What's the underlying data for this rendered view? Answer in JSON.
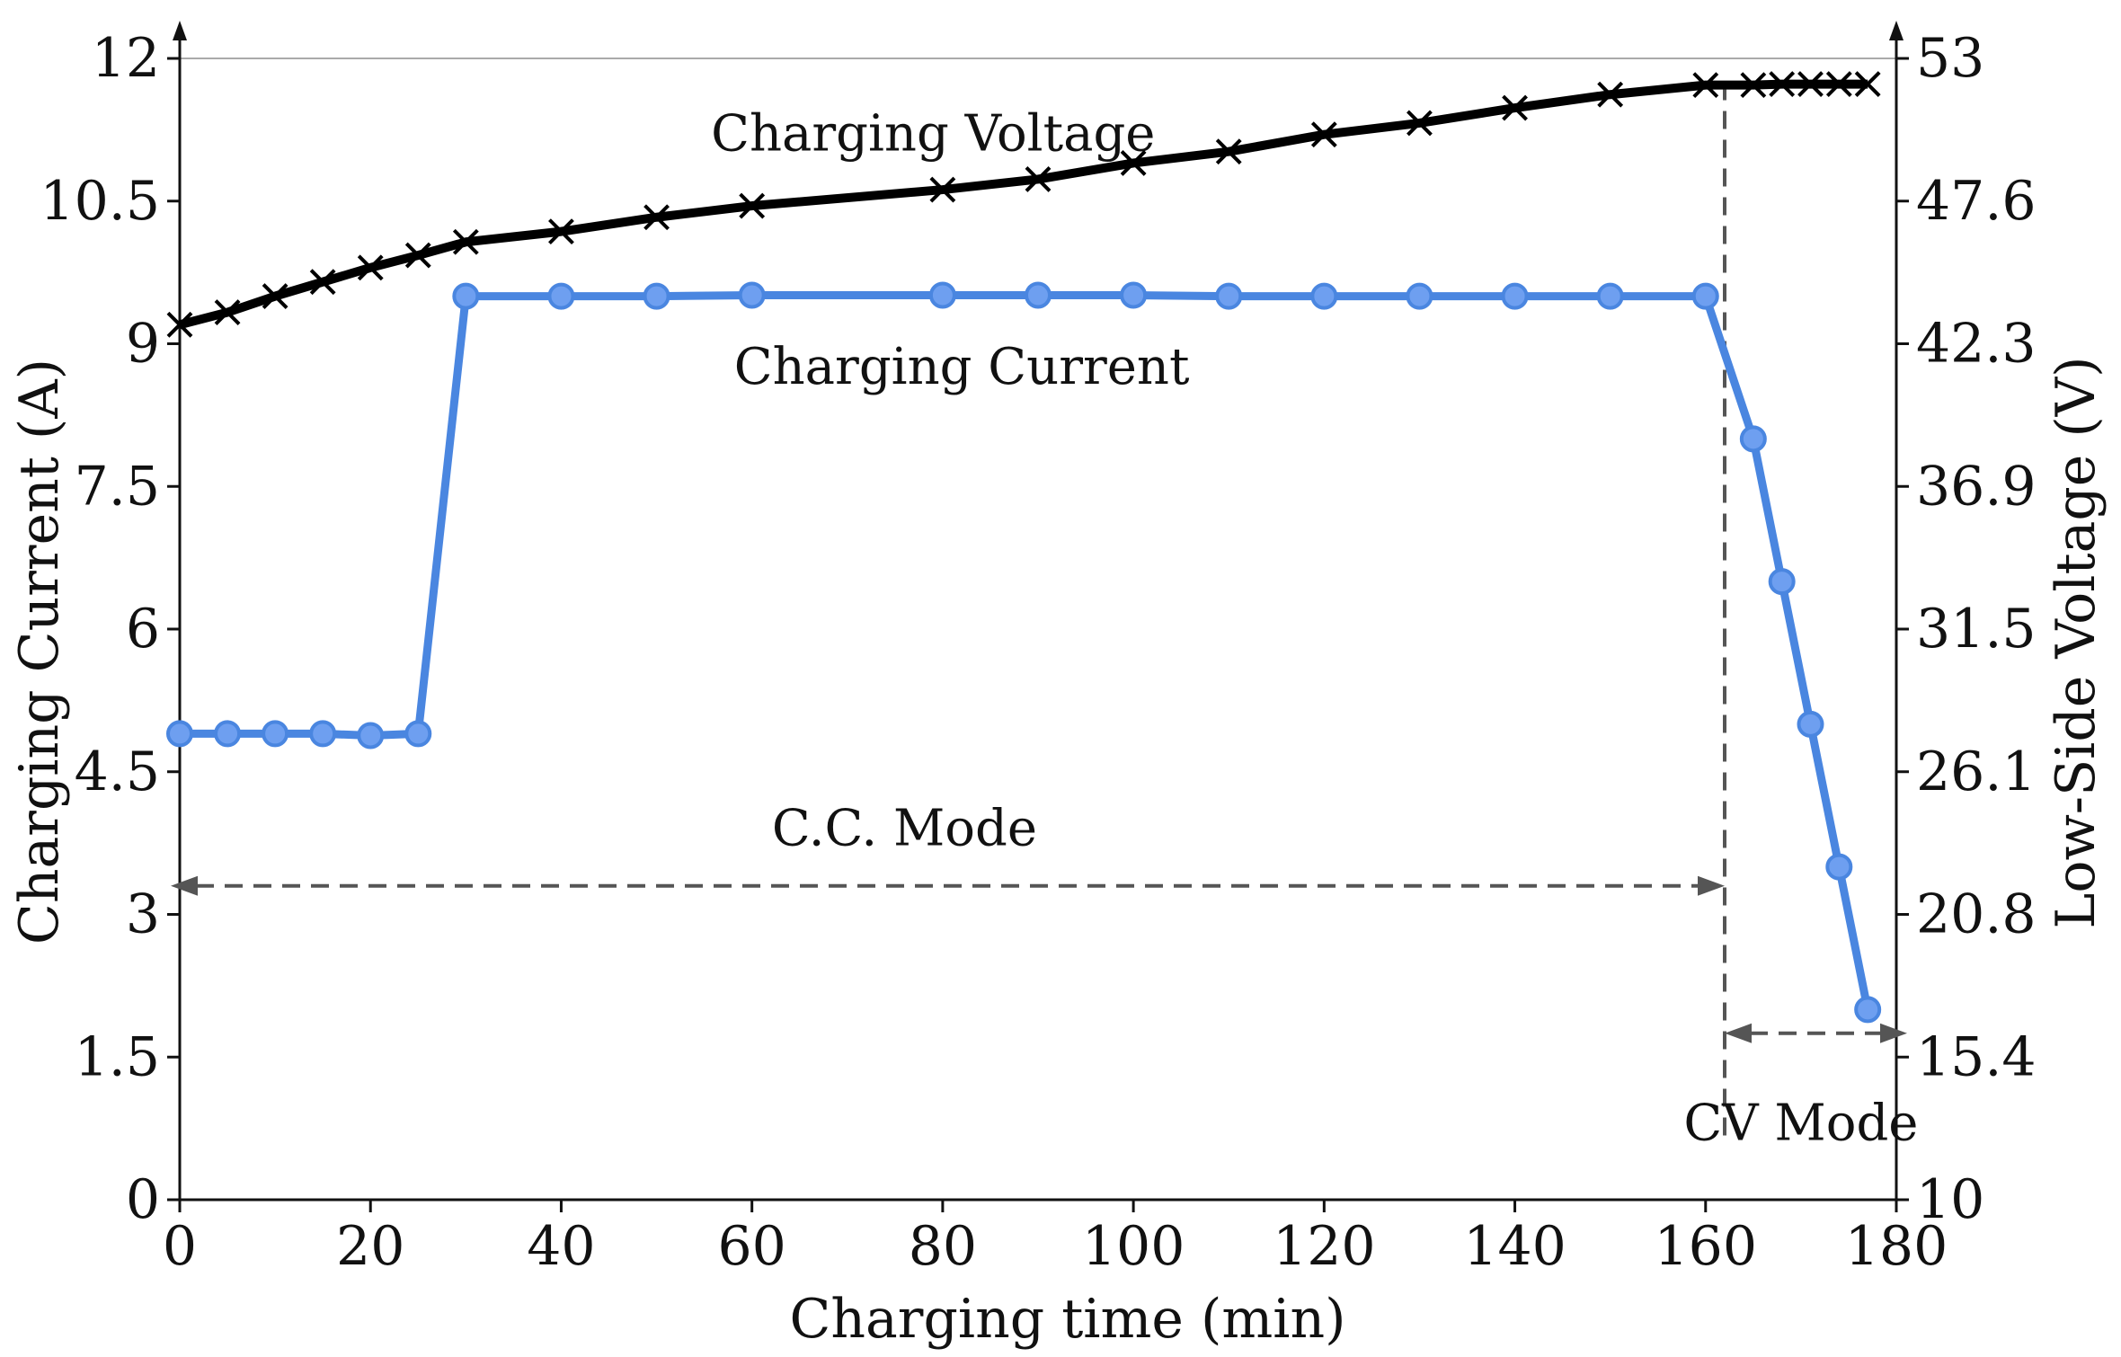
{
  "chart_data": {
    "type": "line",
    "xlabel": "Charging time (min)",
    "ylabel_left": "Charging Current (A)",
    "ylabel_right": "Low-Side Voltage (V)",
    "xlim": [
      0,
      180
    ],
    "ylim_left": [
      0,
      12
    ],
    "ylim_right": [
      10,
      53
    ],
    "x_ticks": [
      "0",
      "20",
      "40",
      "60",
      "80",
      "100",
      "120",
      "140",
      "160",
      "180"
    ],
    "y_left_ticks": [
      "0",
      "1.5",
      "3",
      "4.5",
      "6",
      "7.5",
      "9",
      "10.5",
      "12"
    ],
    "y_right_ticks": [
      "10",
      "15.4",
      "20.8",
      "26.1",
      "31.5",
      "36.9",
      "42.3",
      "47.6",
      "53"
    ],
    "series": [
      {
        "name": "Charging Voltage",
        "axis": "left",
        "marker": "x",
        "color": "#000000",
        "x": [
          0,
          5,
          10,
          15,
          20,
          25,
          30,
          40,
          50,
          60,
          80,
          90,
          100,
          110,
          120,
          130,
          140,
          150,
          160,
          165,
          168,
          171,
          174,
          177
        ],
        "values": [
          9.2,
          9.33,
          9.5,
          9.65,
          9.8,
          9.93,
          10.07,
          10.18,
          10.33,
          10.45,
          10.62,
          10.73,
          10.9,
          11.02,
          11.2,
          11.32,
          11.48,
          11.62,
          11.72,
          11.72,
          11.73,
          11.73,
          11.73,
          11.73
        ]
      },
      {
        "name": "Charging Current",
        "axis": "left",
        "marker": "o",
        "color": "#4a86e0",
        "x": [
          0,
          5,
          10,
          15,
          20,
          25,
          30,
          40,
          50,
          60,
          80,
          90,
          100,
          110,
          120,
          130,
          140,
          150,
          160,
          165,
          168,
          171,
          174,
          177
        ],
        "values": [
          4.9,
          4.9,
          4.9,
          4.9,
          4.88,
          4.9,
          9.5,
          9.5,
          9.5,
          9.51,
          9.51,
          9.51,
          9.51,
          9.5,
          9.5,
          9.5,
          9.5,
          9.5,
          9.5,
          8.0,
          6.5,
          5.0,
          3.5,
          2.0
        ]
      }
    ],
    "annotations": [
      {
        "text": "Charging Voltage",
        "x": 79,
        "y": 11.2
      },
      {
        "text": "Charging Current",
        "x": 82,
        "y": 8.75
      },
      {
        "text": "C.C. Mode",
        "x": 76,
        "y": 3.9
      },
      {
        "text": "CV Mode",
        "x": 170,
        "y": 0.8
      }
    ],
    "regions": [
      {
        "label": "C.C. Mode",
        "x_start": 0,
        "x_end": 162,
        "y": 3.3
      },
      {
        "label": "CV Mode",
        "x_start": 162,
        "x_end": 180,
        "y": 1.75
      }
    ],
    "mode_boundary_x": 162,
    "grid": false
  }
}
